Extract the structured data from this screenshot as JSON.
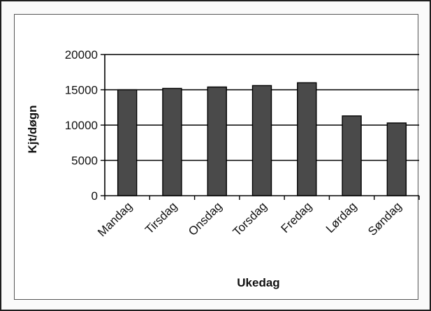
{
  "chart_data": {
    "type": "bar",
    "categories": [
      "Mandag",
      "Tirsdag",
      "Onsdag",
      "Torsdag",
      "Fredag",
      "Lørdag",
      "Søndag"
    ],
    "values": [
      15000,
      15200,
      15400,
      15600,
      16000,
      11300,
      10300
    ],
    "xlabel": "Ukedag",
    "ylabel": "Kjt/døgn",
    "ylim": [
      0,
      20000
    ],
    "yticks": [
      0,
      5000,
      10000,
      15000,
      20000
    ],
    "grid": true,
    "legend": "none",
    "colors": {
      "bar": "#4a4a4a",
      "bar_edge": "#000000",
      "grid": "#000000"
    }
  }
}
